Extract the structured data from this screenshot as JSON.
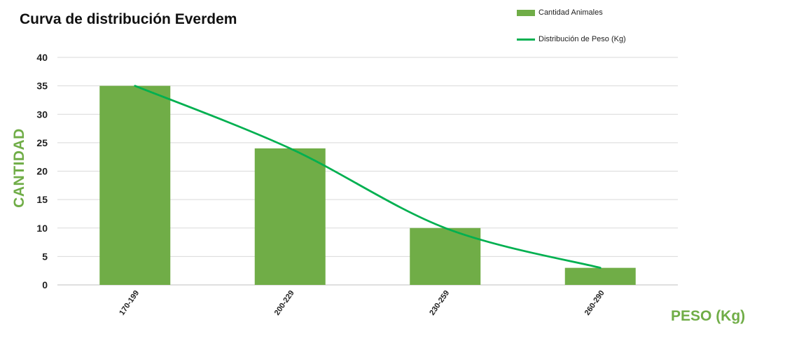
{
  "chart_data": {
    "type": "bar",
    "title": "Curva de distribución Everdem",
    "xlabel": "PESO (Kg)",
    "ylabel": "CANTIDAD",
    "categories": [
      "170-199",
      "200-229",
      "230-259",
      "260-290"
    ],
    "series": [
      {
        "name": "Cantidad Animales",
        "type": "bar",
        "values": [
          35,
          24,
          10,
          3
        ],
        "color": "#70ad47"
      },
      {
        "name": "Distribución de Peso (Kg)",
        "type": "line",
        "values": [
          35,
          24,
          10,
          3
        ],
        "color": "#00b050"
      }
    ],
    "ylim": [
      0,
      40
    ],
    "yticks": [
      0,
      5,
      10,
      15,
      20,
      25,
      30,
      35,
      40
    ],
    "grid": true,
    "legend": "top-right"
  }
}
